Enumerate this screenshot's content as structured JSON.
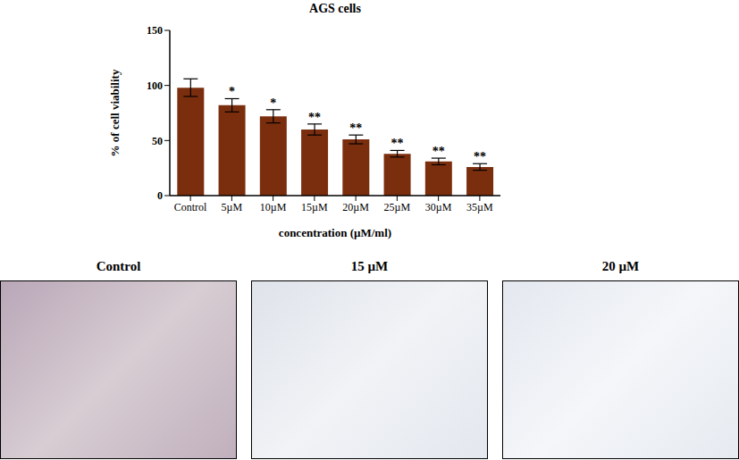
{
  "chart_data": {
    "type": "bar",
    "title": "AGS cells",
    "x_label": "concentration (µM/ml)",
    "y_label": "% of cell viability",
    "categories": [
      "Control",
      "5µM",
      "10µM",
      "15µM",
      "20µM",
      "25µM",
      "30µM",
      "35µM"
    ],
    "values": [
      98,
      82,
      72,
      60,
      51,
      38,
      31,
      26
    ],
    "error": [
      8,
      6,
      6,
      5,
      4,
      3,
      3,
      3
    ],
    "annotations": [
      null,
      "*",
      "*",
      "**",
      "**",
      "**",
      "**",
      "**"
    ],
    "color": "#7b2e0e",
    "ylim": [
      0,
      150
    ],
    "yticks": [
      0,
      50,
      100,
      150
    ],
    "grid": false
  },
  "panels": [
    "Control",
    "15 µM",
    "20 µM"
  ]
}
